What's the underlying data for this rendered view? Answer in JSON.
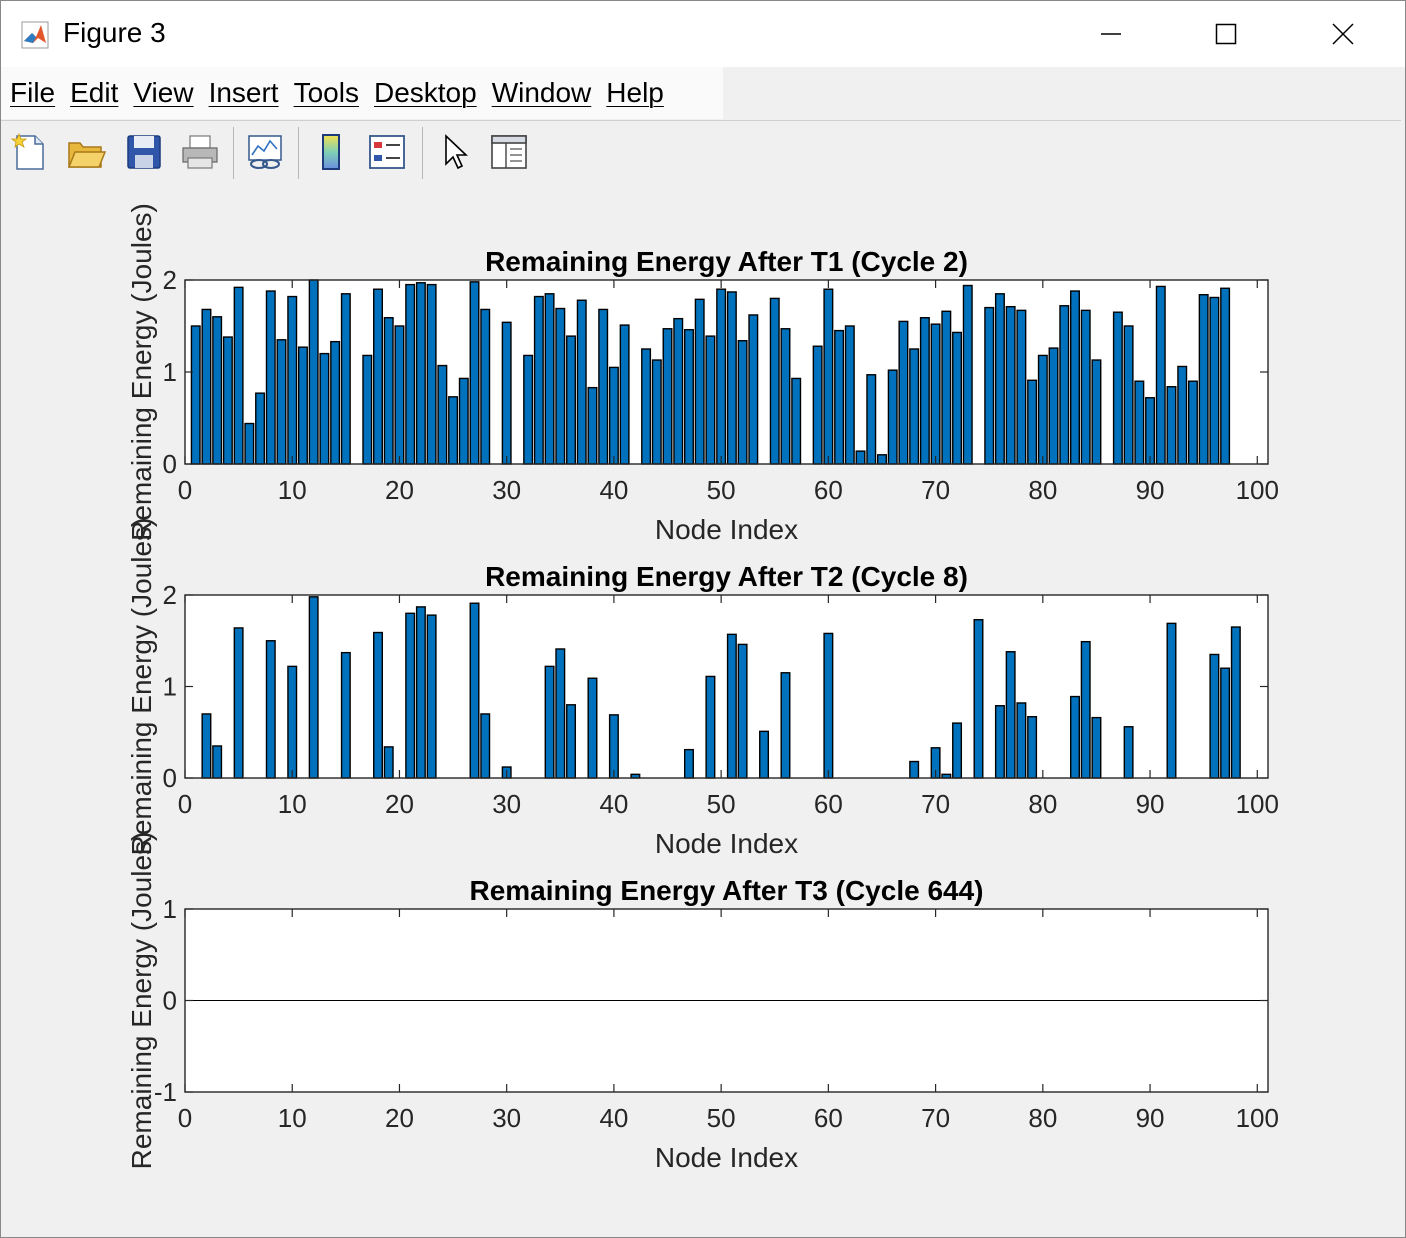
{
  "window": {
    "title": "Figure 3"
  },
  "menu": [
    "File",
    "Edit",
    "View",
    "Insert",
    "Tools",
    "Desktop",
    "Window",
    "Help"
  ],
  "toolbar": {
    "icons": [
      "new-figure-icon",
      "open-file-icon",
      "save-icon",
      "print-icon",
      "link-plot-icon",
      "colorbar-icon",
      "legend-icon",
      "edit-plot-arrow-icon",
      "property-inspector-icon"
    ]
  },
  "colors": {
    "bar": "#0072bd",
    "bar_edge": "#000000",
    "background": "#f0f0f0",
    "axes": "#ffffff"
  },
  "chart_data": [
    {
      "type": "bar",
      "title": "Remaining Energy After T1 (Cycle 2)",
      "xlabel": "Node Index",
      "ylabel": "Remaining Energy (Joules)",
      "xlim": [
        0,
        101
      ],
      "ylim": [
        0,
        2
      ],
      "xticks": [
        0,
        10,
        20,
        30,
        40,
        50,
        60,
        70,
        80,
        90,
        100
      ],
      "yticks": [
        0,
        1,
        2
      ],
      "x": [
        1,
        2,
        3,
        4,
        5,
        6,
        7,
        8,
        9,
        10,
        11,
        12,
        13,
        14,
        15,
        16,
        17,
        18,
        19,
        20,
        21,
        22,
        23,
        24,
        25,
        26,
        27,
        28,
        29,
        30,
        31,
        32,
        33,
        34,
        35,
        36,
        37,
        38,
        39,
        40,
        41,
        42,
        43,
        44,
        45,
        46,
        47,
        48,
        49,
        50,
        51,
        52,
        53,
        54,
        55,
        56,
        57,
        58,
        59,
        60,
        61,
        62,
        63,
        64,
        65,
        66,
        67,
        68,
        69,
        70,
        71,
        72,
        73,
        74,
        75,
        76,
        77,
        78,
        79,
        80,
        81,
        82,
        83,
        84,
        85,
        86,
        87,
        88,
        89,
        90,
        91,
        92,
        93,
        94,
        95,
        96,
        97,
        98,
        99,
        100
      ],
      "values": [
        1.5,
        1.68,
        1.6,
        1.38,
        1.92,
        0.44,
        0.77,
        1.88,
        1.35,
        1.82,
        1.27,
        2.0,
        1.2,
        1.33,
        1.85,
        0,
        1.18,
        1.9,
        1.59,
        1.5,
        1.95,
        1.97,
        1.95,
        1.07,
        0.73,
        0.93,
        1.98,
        1.68,
        0,
        1.54,
        0,
        1.18,
        1.82,
        1.85,
        1.69,
        1.39,
        1.78,
        0.83,
        1.68,
        1.05,
        1.51,
        0,
        1.25,
        1.13,
        1.47,
        1.58,
        1.46,
        1.79,
        1.39,
        1.9,
        1.87,
        1.34,
        1.62,
        0,
        1.8,
        1.47,
        0.93,
        0,
        1.28,
        1.9,
        1.45,
        1.5,
        0.14,
        0.97,
        0.1,
        1.02,
        1.55,
        1.25,
        1.59,
        1.52,
        1.66,
        1.43,
        1.94,
        0,
        1.7,
        1.85,
        1.71,
        1.67,
        0.91,
        1.18,
        1.26,
        1.72,
        1.88,
        1.67,
        1.13,
        0,
        1.65,
        1.5,
        0.9,
        0.72,
        1.93,
        0.84,
        1.06,
        0.9,
        1.84,
        1.81,
        1.91,
        0,
        0,
        0
      ]
    },
    {
      "type": "bar",
      "title": "Remaining Energy After T2 (Cycle 8)",
      "xlabel": "Node Index",
      "ylabel": "Remaining Energy (Joules)",
      "xlim": [
        0,
        101
      ],
      "ylim": [
        0,
        2
      ],
      "xticks": [
        0,
        10,
        20,
        30,
        40,
        50,
        60,
        70,
        80,
        90,
        100
      ],
      "yticks": [
        0,
        1,
        2
      ],
      "x": [
        1,
        2,
        3,
        4,
        5,
        6,
        7,
        8,
        9,
        10,
        11,
        12,
        13,
        14,
        15,
        16,
        17,
        18,
        19,
        20,
        21,
        22,
        23,
        24,
        25,
        26,
        27,
        28,
        29,
        30,
        31,
        32,
        33,
        34,
        35,
        36,
        37,
        38,
        39,
        40,
        41,
        42,
        43,
        44,
        45,
        46,
        47,
        48,
        49,
        50,
        51,
        52,
        53,
        54,
        55,
        56,
        57,
        58,
        59,
        60,
        61,
        62,
        63,
        64,
        65,
        66,
        67,
        68,
        69,
        70,
        71,
        72,
        73,
        74,
        75,
        76,
        77,
        78,
        79,
        80,
        81,
        82,
        83,
        84,
        85,
        86,
        87,
        88,
        89,
        90,
        91,
        92,
        93,
        94,
        95,
        96,
        97,
        98,
        99,
        100
      ],
      "values": [
        0,
        0.7,
        0.35,
        0,
        1.64,
        0,
        0,
        1.5,
        0,
        1.22,
        0,
        1.98,
        0,
        0,
        1.37,
        0,
        0,
        1.59,
        0.34,
        0,
        1.8,
        1.87,
        1.78,
        0,
        0,
        0,
        1.91,
        0.7,
        0,
        0.12,
        0,
        0,
        0,
        1.22,
        1.41,
        0.8,
        0,
        1.09,
        0,
        0.69,
        0,
        0.04,
        0,
        0,
        0,
        0,
        0.31,
        0,
        1.11,
        0,
        1.57,
        1.46,
        0,
        0.51,
        0,
        1.15,
        0,
        0,
        0,
        1.58,
        0,
        0,
        0,
        0,
        0,
        0,
        0,
        0.18,
        0,
        0.33,
        0.04,
        0.6,
        0,
        1.73,
        0,
        0.79,
        1.38,
        0.82,
        0.67,
        0,
        0,
        0,
        0.89,
        1.49,
        0.66,
        0,
        0,
        0.56,
        0,
        0,
        0,
        1.69,
        0,
        0,
        0,
        1.35,
        1.2,
        1.65,
        0,
        0
      ]
    },
    {
      "type": "bar",
      "title": "Remaining Energy After T3 (Cycle 644)",
      "xlabel": "Node Index",
      "ylabel": "Remaining Energy (Joules)",
      "xlim": [
        0,
        101
      ],
      "ylim": [
        -1,
        1
      ],
      "xticks": [
        0,
        10,
        20,
        30,
        40,
        50,
        60,
        70,
        80,
        90,
        100
      ],
      "yticks": [
        -1,
        0,
        1
      ],
      "x": [
        1,
        2,
        3,
        4,
        5,
        6,
        7,
        8,
        9,
        10,
        11,
        12,
        13,
        14,
        15,
        16,
        17,
        18,
        19,
        20,
        21,
        22,
        23,
        24,
        25,
        26,
        27,
        28,
        29,
        30,
        31,
        32,
        33,
        34,
        35,
        36,
        37,
        38,
        39,
        40,
        41,
        42,
        43,
        44,
        45,
        46,
        47,
        48,
        49,
        50,
        51,
        52,
        53,
        54,
        55,
        56,
        57,
        58,
        59,
        60,
        61,
        62,
        63,
        64,
        65,
        66,
        67,
        68,
        69,
        70,
        71,
        72,
        73,
        74,
        75,
        76,
        77,
        78,
        79,
        80,
        81,
        82,
        83,
        84,
        85,
        86,
        87,
        88,
        89,
        90,
        91,
        92,
        93,
        94,
        95,
        96,
        97,
        98,
        99,
        100
      ],
      "values": [
        0,
        0,
        0,
        0,
        0,
        0,
        0,
        0,
        0,
        0,
        0,
        0,
        0,
        0,
        0,
        0,
        0,
        0,
        0,
        0,
        0,
        0,
        0,
        0,
        0,
        0,
        0,
        0,
        0,
        0,
        0,
        0,
        0,
        0,
        0,
        0,
        0,
        0,
        0,
        0,
        0,
        0,
        0,
        0,
        0,
        0,
        0,
        0,
        0,
        0,
        0,
        0,
        0,
        0,
        0,
        0,
        0,
        0,
        0,
        0,
        0,
        0,
        0,
        0,
        0,
        0,
        0,
        0,
        0,
        0,
        0,
        0,
        0,
        0,
        0,
        0,
        0,
        0,
        0,
        0,
        0,
        0,
        0,
        0,
        0,
        0,
        0,
        0,
        0,
        0,
        0,
        0,
        0,
        0,
        0,
        0,
        0,
        0,
        0,
        0
      ]
    }
  ]
}
